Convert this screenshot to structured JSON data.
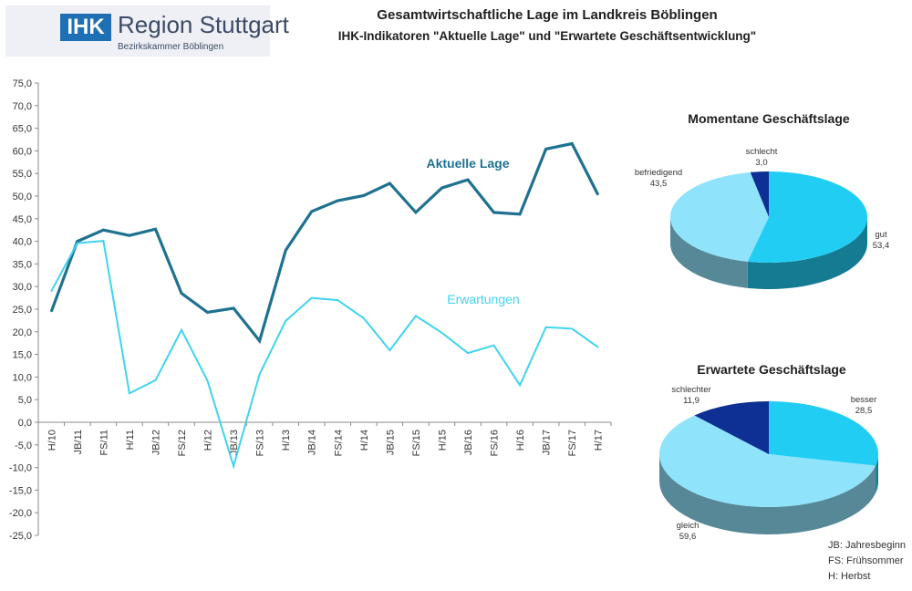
{
  "header": {
    "logo_mark": "IHK",
    "logo_title": "Region Stuttgart",
    "logo_subtitle": "Bezirkskammer Böblingen",
    "title": "Gesamtwirtschaftliche Lage im Landkreis Böblingen",
    "subtitle": "IHK-Indikatoren \"Aktuelle Lage\" und \"Erwartete Geschäftsentwicklung\""
  },
  "colors": {
    "aktuelle": "#1f7190",
    "erwartungen": "#3fd4ee",
    "pie_light": "#8fe3fb",
    "pie_cyan": "#22cdf3",
    "pie_dark": "#0e2f93"
  },
  "chart_data": [
    {
      "type": "line",
      "title": "",
      "xlabel": "",
      "ylabel": "",
      "ylim": [
        -25,
        75
      ],
      "ytick_step": 5,
      "grid": false,
      "categories": [
        "H/10",
        "JB/11",
        "FS/11",
        "H/11",
        "JB/12",
        "FS/12",
        "H/12",
        "JB/13",
        "FS/13",
        "H/13",
        "JB/14",
        "FS/14",
        "H/14",
        "JB/15",
        "FS/15",
        "H/15",
        "JB/16",
        "FS/16",
        "H/16",
        "JB/17",
        "FS/17",
        "H/17"
      ],
      "y_tick_labels": [
        "75,0",
        "70,0",
        "65,0",
        "60,0",
        "55,0",
        "50,0",
        "45,0",
        "40,0",
        "35,0",
        "30,0",
        "25,0",
        "20,0",
        "15,0",
        "10,0",
        "5,0",
        "0,0",
        "-5,0",
        "-10,0",
        "-15,0",
        "-20,0",
        "-25,0"
      ],
      "series": [
        {
          "name": "Aktuelle Lage",
          "values": [
            24.5,
            40.0,
            42.5,
            41.3,
            42.7,
            28.5,
            24.3,
            25.2,
            18.0,
            38.0,
            46.6,
            49.0,
            50.1,
            52.8,
            46.4,
            51.8,
            53.6,
            46.4,
            46.0,
            60.4,
            61.6,
            50.3
          ]
        },
        {
          "name": "Erwartungen",
          "values": [
            29.0,
            39.6,
            40.1,
            6.4,
            9.3,
            20.4,
            9.2,
            -9.7,
            10.6,
            22.4,
            27.5,
            27.0,
            23.0,
            15.9,
            23.5,
            19.8,
            15.3,
            17.0,
            8.2,
            21.0,
            20.7,
            16.6
          ]
        }
      ]
    },
    {
      "type": "pie",
      "title": "Momentane Geschäftslage",
      "slices": [
        {
          "label": "gut",
          "value_text": "53,4",
          "value": 53.4
        },
        {
          "label": "befriedigend",
          "value_text": "43,5",
          "value": 43.5
        },
        {
          "label": "schlecht",
          "value_text": "3,0",
          "value": 3.0
        }
      ]
    },
    {
      "type": "pie",
      "title": "Erwartete Geschäftslage",
      "slices": [
        {
          "label": "besser",
          "value_text": "28,5",
          "value": 28.5
        },
        {
          "label": "gleich",
          "value_text": "59,6",
          "value": 59.6
        },
        {
          "label": "schlechter",
          "value_text": "11,9",
          "value": 11.9
        }
      ]
    }
  ],
  "notes": [
    "JB:  Jahresbeginn",
    "FS: Frühsommer",
    "H:   Herbst"
  ]
}
